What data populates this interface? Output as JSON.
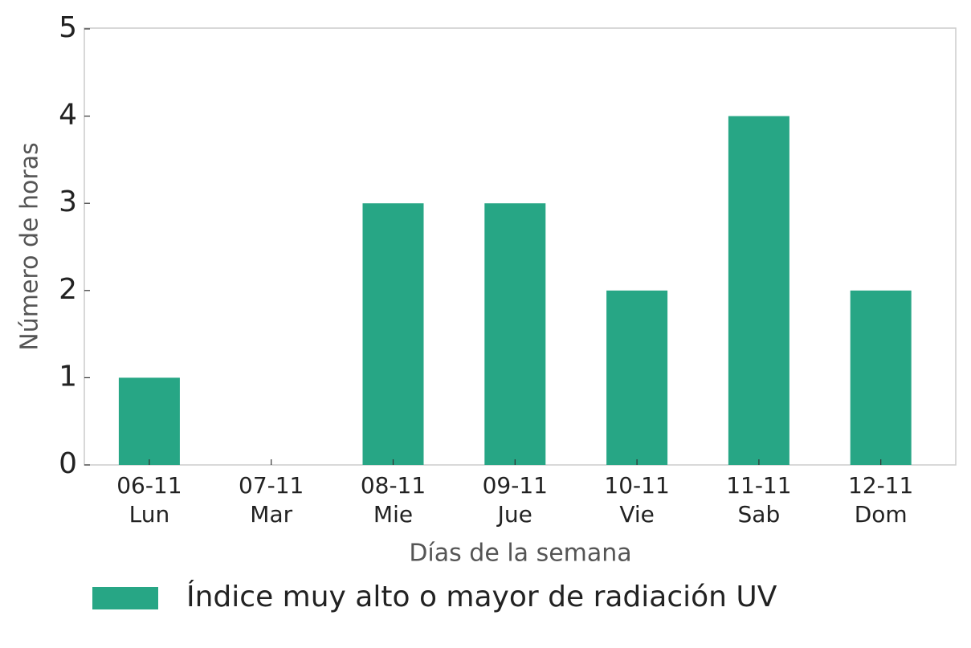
{
  "chart_data": {
    "type": "bar",
    "xlabel": "Días de la semana",
    "ylabel": "Número de horas",
    "categories": [
      [
        "06-11",
        "Lun"
      ],
      [
        "07-11",
        "Mar"
      ],
      [
        "08-11",
        "Mie"
      ],
      [
        "09-11",
        "Jue"
      ],
      [
        "10-11",
        "Vie"
      ],
      [
        "11-11",
        "Sab"
      ],
      [
        "12-11",
        "Dom"
      ]
    ],
    "series": [
      {
        "name": "Índice muy alto o mayor de radiación UV",
        "color": "#27a685",
        "values": [
          1,
          0,
          3,
          3,
          2,
          4,
          2
        ]
      }
    ],
    "ylim": [
      0,
      5
    ],
    "yticks": [
      0,
      1,
      2,
      3,
      4,
      5
    ],
    "grid": false,
    "legend": "bottom"
  }
}
